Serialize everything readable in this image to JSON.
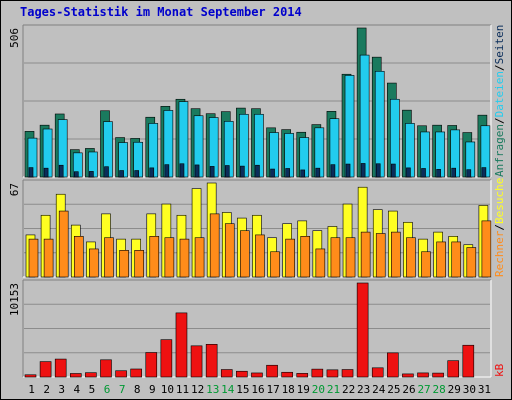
{
  "title": "Tages-Statistik im Monat September 2014",
  "chart_data": {
    "type": "bar",
    "categories": [
      "1",
      "2",
      "3",
      "4",
      "5",
      "6",
      "7",
      "8",
      "9",
      "10",
      "11",
      "12",
      "13",
      "14",
      "15",
      "16",
      "17",
      "18",
      "19",
      "20",
      "21",
      "22",
      "23",
      "24",
      "25",
      "26",
      "27",
      "28",
      "29",
      "30",
      "31"
    ],
    "weekend_days": [
      "6",
      "7",
      "13",
      "14",
      "20",
      "21",
      "27",
      "28"
    ],
    "colors": {
      "anfragen": "#1a7a5e",
      "dateien": "#22ccee",
      "seiten": "#0a2d5a",
      "besuche": "#ffff22",
      "rechner": "#ff8c1a",
      "kb": "#ee1111",
      "weekend_label": "#009933",
      "weekday_label": "#000000"
    },
    "panels": [
      {
        "ymax_label": "506",
        "ymax": 506,
        "series": [
          {
            "name": "Anfragen",
            "values": [
              155,
              176,
              214,
              93,
              97,
              225,
              134,
              131,
              203,
              240,
              264,
              232,
              215,
              222,
              234,
              232,
              167,
              161,
              152,
              178,
              223,
              349,
              506,
              407,
              319,
              227,
              174,
              176,
              175,
              151,
              210
            ]
          },
          {
            "name": "Dateien",
            "values": [
              132,
              163,
              195,
              82,
              85,
              188,
              117,
              118,
              182,
              226,
              256,
              208,
              202,
              189,
              213,
              213,
              151,
              148,
              134,
              167,
              198,
              345,
              414,
              359,
              264,
              182,
              153,
              153,
              160,
              119,
              174
            ]
          },
          {
            "name": "Seiten",
            "values": [
              32,
              30,
              40,
              18,
              19,
              35,
              22,
              22,
              31,
              42,
              45,
              41,
              36,
              39,
              37,
              40,
              27,
              29,
              24,
              30,
              42,
              44,
              46,
              45,
              44,
              31,
              29,
              26,
              30,
              25,
              32
            ]
          }
        ],
        "right_labels": [
          {
            "text": "Anfragen",
            "color": "#1a7a5e"
          },
          {
            "text": "Dateien",
            "color": "#22ccee"
          },
          {
            "text": "Seiten",
            "color": "#0a2d5a"
          }
        ]
      },
      {
        "ymax_label": "67",
        "ymax": 67,
        "series": [
          {
            "name": "Besuche",
            "values": [
              30,
              44,
              59,
              37,
              25,
              45,
              27,
              27,
              45,
              52,
              44,
              63,
              67,
              46,
              42,
              44,
              28,
              38,
              40,
              33,
              36,
              52,
              64,
              48,
              47,
              39,
              27,
              32,
              29,
              23,
              51
            ]
          },
          {
            "name": "Rechner",
            "values": [
              27,
              27,
              47,
              29,
              20,
              28,
              19,
              19,
              29,
              28,
              27,
              28,
              45,
              38,
              33,
              30,
              18,
              27,
              29,
              20,
              28,
              28,
              32,
              31,
              32,
              28,
              18,
              25,
              25,
              21,
              40
            ]
          }
        ],
        "right_labels": [
          {
            "text": "Rechner",
            "color": "#ff8c1a"
          },
          {
            "text": "Besuche",
            "color": "#ffff22"
          }
        ]
      },
      {
        "ymax_label": "10153",
        "ymax": 10153,
        "series": [
          {
            "name": "kB",
            "values": [
              240,
              1663,
              1936,
              378,
              467,
              1858,
              677,
              864,
              2645,
              4032,
              6923,
              3367,
              3531,
              806,
              622,
              437,
              1270,
              512,
              390,
              851,
              775,
              807,
              10153,
              993,
              2607,
              333,
              441,
              422,
              1764,
              3431,
              0
            ]
          }
        ],
        "right_labels": [
          {
            "text": "kB",
            "color": "#ee1111"
          }
        ]
      }
    ],
    "legend_separator": "/",
    "grid": true
  }
}
